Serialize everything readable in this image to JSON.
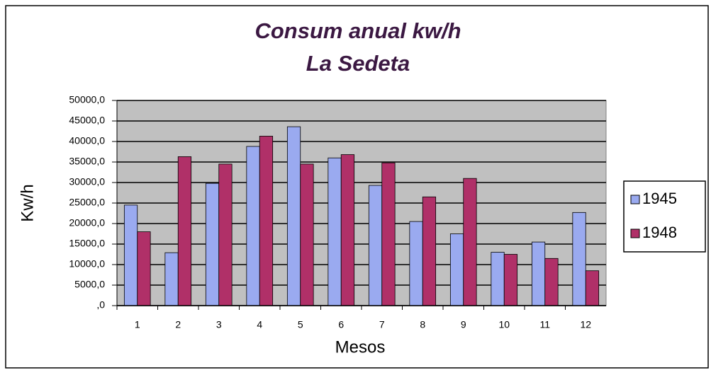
{
  "chart_data": {
    "type": "bar",
    "title": [
      "Consum anual kw/h",
      "La Sedeta"
    ],
    "x_label": "Mesos",
    "y_label": "Kw/h",
    "categories": [
      "1",
      "2",
      "3",
      "4",
      "5",
      "6",
      "7",
      "8",
      "9",
      "10",
      "11",
      "12"
    ],
    "series": [
      {
        "name": "1945",
        "color": "#9aaaf0",
        "values": [
          24500,
          12900,
          29800,
          38800,
          43600,
          36000,
          29300,
          20500,
          17500,
          13000,
          15500,
          22700
        ]
      },
      {
        "name": "1948",
        "color": "#b03068",
        "values": [
          18000,
          36300,
          34500,
          41300,
          34500,
          36800,
          34800,
          26500,
          31000,
          12500,
          11500,
          8500
        ]
      }
    ],
    "ylim": [
      0,
      50000
    ],
    "yticks": [
      {
        "value": 0,
        "label": ",0"
      },
      {
        "value": 5000,
        "label": "5000,0"
      },
      {
        "value": 10000,
        "label": "10000,0"
      },
      {
        "value": 15000,
        "label": "15000,0"
      },
      {
        "value": 20000,
        "label": "20000,0"
      },
      {
        "value": 25000,
        "label": "25000,0"
      },
      {
        "value": 30000,
        "label": "30000,0"
      },
      {
        "value": 35000,
        "label": "35000,0"
      },
      {
        "value": 40000,
        "label": "40000,0"
      },
      {
        "value": 45000,
        "label": "45000,0"
      },
      {
        "value": 50000,
        "label": "50000,0"
      }
    ],
    "grid": true,
    "plot_background": "#c0c0c0",
    "legend": "right"
  }
}
